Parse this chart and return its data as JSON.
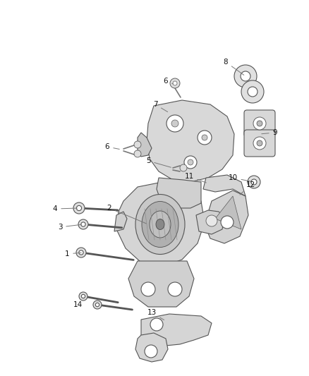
{
  "background_color": "#ffffff",
  "line_color": "#777777",
  "fill_light": "#e8e8e8",
  "fill_mid": "#d0d0d0",
  "fill_dark": "#b8b8b8",
  "edge_color": "#555555",
  "label_color": "#111111",
  "label_fontsize": 7.5,
  "fig_width": 4.38,
  "fig_height": 5.33,
  "dpi": 100
}
